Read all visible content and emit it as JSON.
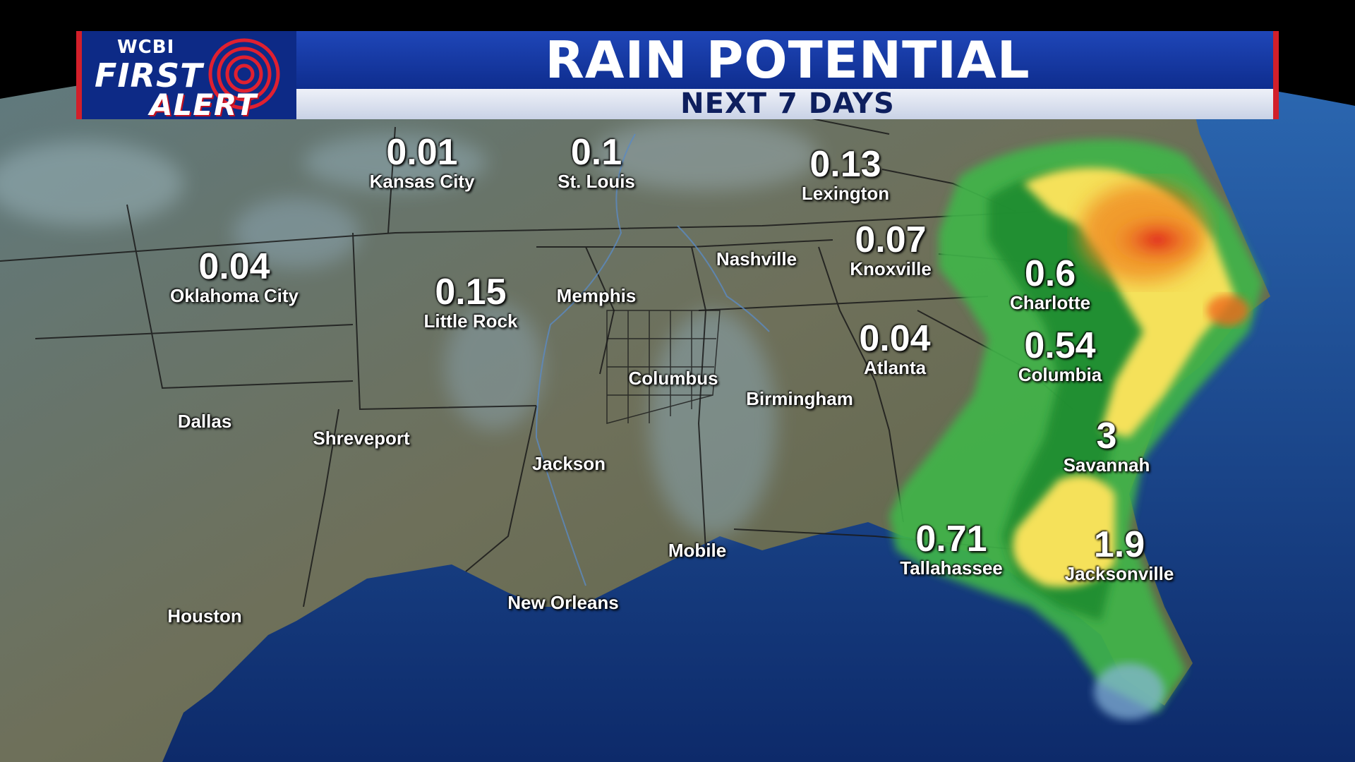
{
  "header": {
    "station": "WCBI",
    "brand_line1": "FIRST",
    "brand_line2": "ALERT",
    "title": "RAIN POTENTIAL",
    "subtitle": "NEXT 7 DAYS"
  },
  "cities": [
    {
      "name": "Kansas City",
      "amount": "0.01"
    },
    {
      "name": "St. Louis",
      "amount": "0.1"
    },
    {
      "name": "Lexington",
      "amount": "0.13"
    },
    {
      "name": "Oklahoma City",
      "amount": "0.04"
    },
    {
      "name": "Little Rock",
      "amount": "0.15"
    },
    {
      "name": "Memphis",
      "amount": ""
    },
    {
      "name": "Nashville",
      "amount": ""
    },
    {
      "name": "Knoxville",
      "amount": "0.07"
    },
    {
      "name": "Charlotte",
      "amount": "0.6"
    },
    {
      "name": "Atlanta",
      "amount": "0.04"
    },
    {
      "name": "Columbia",
      "amount": "0.54"
    },
    {
      "name": "Columbus",
      "amount": ""
    },
    {
      "name": "Birmingham",
      "amount": ""
    },
    {
      "name": "Dallas",
      "amount": ""
    },
    {
      "name": "Shreveport",
      "amount": ""
    },
    {
      "name": "Jackson",
      "amount": ""
    },
    {
      "name": "Savannah",
      "amount": "3"
    },
    {
      "name": "Mobile",
      "amount": ""
    },
    {
      "name": "Tallahassee",
      "amount": "0.71"
    },
    {
      "name": "Jacksonville",
      "amount": "1.9"
    },
    {
      "name": "Houston",
      "amount": ""
    },
    {
      "name": "New Orleans",
      "amount": ""
    }
  ],
  "colors": {
    "rain_light": "#3fb64a",
    "rain_dark": "#1f8a2e",
    "rain_yellow": "#f5e15a",
    "rain_orange": "#f08a24",
    "rain_red": "#e4281e",
    "ocean": "#1d4f9c",
    "land": "#6d6e58",
    "header_blue": "#1c43b3",
    "header_red": "#d21f2a"
  }
}
